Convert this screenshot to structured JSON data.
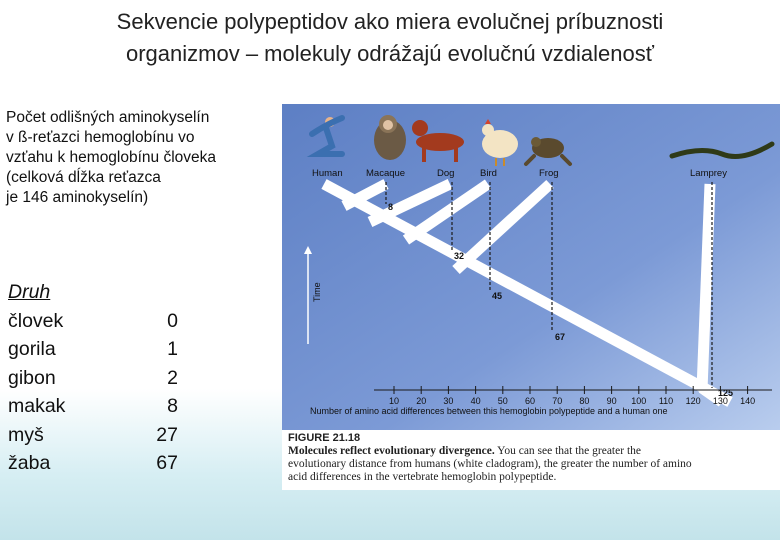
{
  "slide": {
    "title_line1": "Sekvencie polypeptidov ako miera evolučnej príbuznosti",
    "title_line2": "organizmov – molekuly odrážajú evolučnú vzdialenosť"
  },
  "intro": {
    "lines": [
      "Počet odlišných aminokyselín",
      "v ß-reťazci hemoglobínu vo",
      "vzťahu k hemoglobínu človeka",
      "(celková dĺžka reťazca",
      "je 146 aminokyselín)"
    ]
  },
  "table": {
    "header": "Druh",
    "rows": [
      {
        "species": "človek",
        "value": "0"
      },
      {
        "species": "gorila",
        "value": "1"
      },
      {
        "species": "gibon",
        "value": "2"
      },
      {
        "species": "makak",
        "value": "8"
      },
      {
        "species": "myš",
        "value": "27"
      },
      {
        "species": "žaba",
        "value": "67"
      }
    ]
  },
  "figure": {
    "organisms": [
      "Human",
      "Macaque",
      "Dog",
      "Bird",
      "Frog",
      "Lamprey"
    ],
    "branch_values": [
      "8",
      "32",
      "45",
      "67",
      "125"
    ],
    "time_label": "Time",
    "ticks": [
      "10",
      "20",
      "30",
      "40",
      "50",
      "60",
      "70",
      "80",
      "90",
      "100",
      "110",
      "120",
      "130",
      "140"
    ],
    "axis_label": "Number of amino acid differences between this hemoglobin polypeptide and a human one",
    "caption_head": "FIGURE 21.18",
    "caption_bold": "Molecules reflect evolutionary divergence.",
    "caption_rest1": " You can see that the greater the",
    "caption_line2": "evolutionary distance from humans (white cladogram), the greater the number of amino",
    "caption_line3": "acid differences in the vertebrate hemoglobin polypeptide."
  },
  "colors": {
    "figure_blue": "#6f8fcf",
    "figure_blue_light": "#a9c0ea",
    "cladogram": "#ffffff"
  }
}
